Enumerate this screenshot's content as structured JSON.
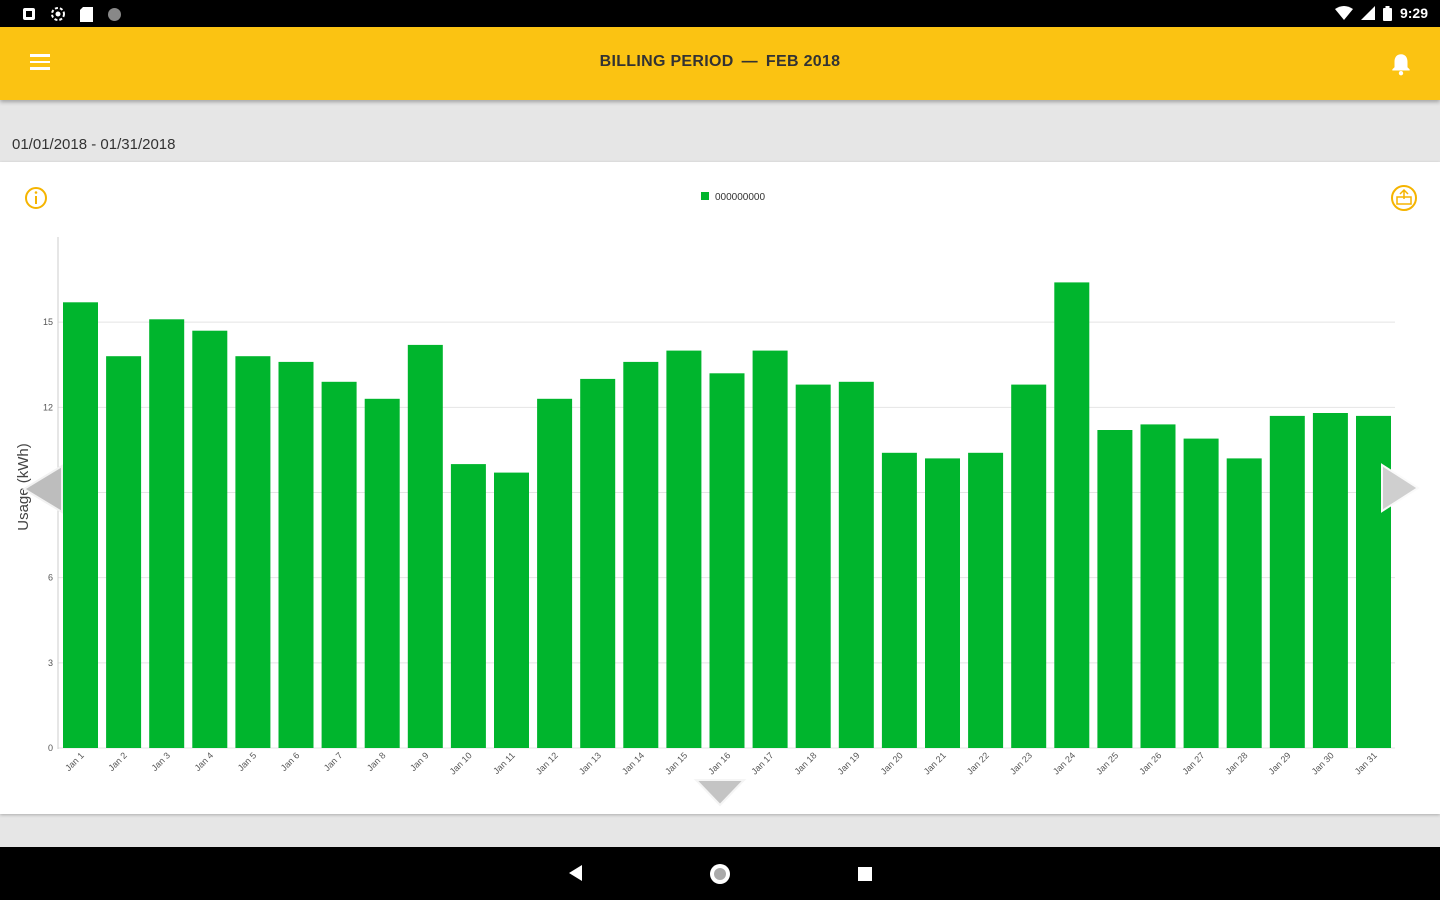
{
  "status_bar": {
    "time": "9:29",
    "left_icons": [
      "notification-icon",
      "settings-gear-icon",
      "sd-card-icon",
      "circle-icon"
    ],
    "right_icons": [
      "wifi-icon",
      "signal-icon",
      "battery-icon"
    ]
  },
  "app_bar": {
    "menu_icon": "menu-icon",
    "title_left": "BILLING PERIOD",
    "title_sep": "—",
    "title_right": "FEB 2018",
    "bell_icon": "bell-icon"
  },
  "date_range": "01/01/2018 - 01/31/2018",
  "card_icons": {
    "info": "info-icon",
    "export": "export-icon"
  },
  "colors": {
    "accent": "#fbc312",
    "bar": "#00b52d",
    "icon": "#f5b400"
  },
  "chart_data": {
    "type": "bar",
    "ylabel": "Usage (kWh)",
    "xlabel": "",
    "ylim": [
      0,
      18
    ],
    "yticks": [
      0,
      3,
      6,
      9,
      12,
      15
    ],
    "ytick_labels": [
      "0",
      "3",
      "6",
      "9",
      "12",
      "15"
    ],
    "grid": true,
    "legend_position": "top-center",
    "categories": [
      "Jan 1",
      "Jan 2",
      "Jan 3",
      "Jan 4",
      "Jan 5",
      "Jan 6",
      "Jan 7",
      "Jan 8",
      "Jan 9",
      "Jan 10",
      "Jan 11",
      "Jan 12",
      "Jan 13",
      "Jan 14",
      "Jan 15",
      "Jan 16",
      "Jan 17",
      "Jan 18",
      "Jan 19",
      "Jan 20",
      "Jan 21",
      "Jan 22",
      "Jan 23",
      "Jan 24",
      "Jan 25",
      "Jan 26",
      "Jan 27",
      "Jan 28",
      "Jan 29",
      "Jan 30",
      "Jan 31"
    ],
    "series": [
      {
        "name": "000000000",
        "color": "#00b52d",
        "values": [
          15.7,
          13.8,
          15.1,
          14.7,
          13.8,
          13.6,
          12.9,
          12.3,
          14.2,
          10.0,
          9.7,
          12.3,
          13.0,
          13.6,
          14.0,
          13.2,
          14.0,
          12.8,
          12.9,
          10.4,
          10.2,
          10.4,
          12.8,
          16.4,
          11.2,
          11.4,
          10.9,
          10.2,
          11.7,
          11.8,
          11.7
        ]
      }
    ]
  }
}
